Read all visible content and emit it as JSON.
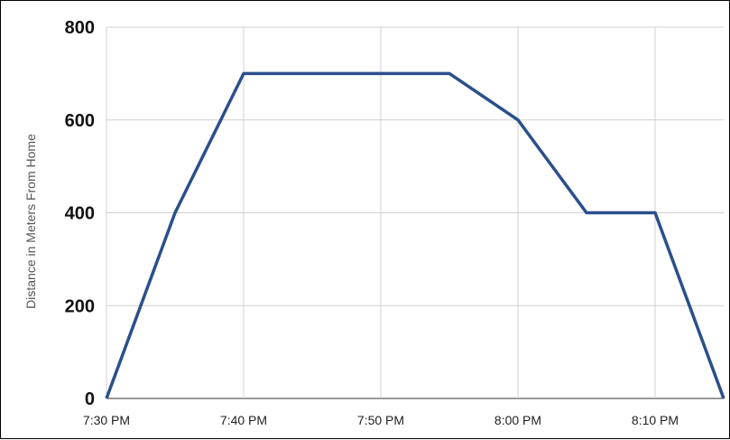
{
  "chart_data": {
    "type": "line",
    "title": "",
    "xlabel": "",
    "ylabel": "Distance in Meters From Home",
    "x": [
      "7:30 PM",
      "7:35 PM",
      "7:40 PM",
      "7:45 PM",
      "7:50 PM",
      "7:55 PM",
      "8:00 PM",
      "8:05 PM",
      "8:10 PM",
      "8:15 PM"
    ],
    "x_tick_labels": [
      "7:30 PM",
      "7:40 PM",
      "7:50 PM",
      "8:00 PM",
      "8:10 PM"
    ],
    "y_ticks": [
      0,
      200,
      400,
      600,
      800
    ],
    "ylim": [
      0,
      800
    ],
    "grid": true,
    "legend": "none",
    "series": [
      {
        "values": [
          0,
          400,
          700,
          700,
          700,
          700,
          600,
          400,
          400,
          0
        ],
        "color": "#2b4f8c"
      }
    ]
  }
}
